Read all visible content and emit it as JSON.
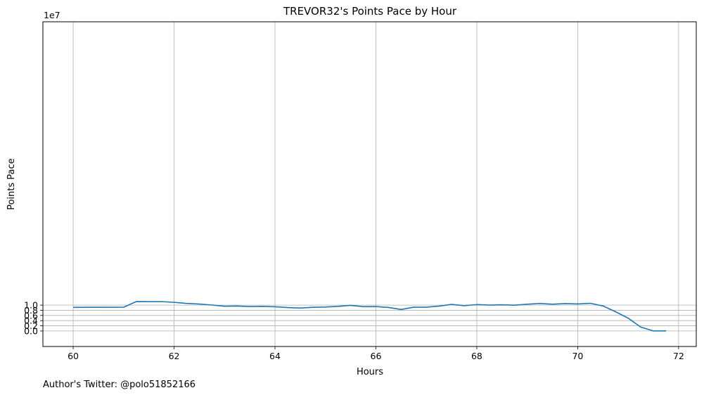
{
  "chart_data": {
    "type": "line",
    "title": "TREVOR32's Points Pace by Hour",
    "xlabel": "Hours",
    "ylabel": "Points Pace",
    "y_exponent_label": "1e7",
    "footer": "Author's Twitter: @polo51852166",
    "xlim": [
      59.4,
      72.35
    ],
    "ylim": [
      -0.6,
      11.95
    ],
    "y_scale_note": "values in units of 1e7",
    "xticks": [
      60,
      62,
      64,
      66,
      68,
      70,
      72
    ],
    "xtick_labels": [
      "60",
      "62",
      "64",
      "66",
      "68",
      "70",
      "72"
    ],
    "yticks": [
      0.0,
      0.2,
      0.4,
      0.6,
      0.8,
      1.0
    ],
    "ytick_labels": [
      "0.0",
      "0.2",
      "0.4",
      "0.6",
      "0.8",
      "1.0"
    ],
    "grid": true,
    "line_color": "#1f77b4",
    "series": [
      {
        "x": [
          60.0,
          60.5,
          61.0,
          61.25,
          61.5,
          61.75,
          62.0,
          62.25,
          62.5,
          62.75,
          63.0,
          63.25,
          63.5,
          63.75,
          64.0,
          64.25,
          64.5,
          64.75,
          65.0,
          65.25,
          65.5,
          65.75,
          66.0,
          66.25,
          66.5,
          66.75,
          67.0,
          67.25,
          67.5,
          67.75,
          68.0,
          68.25,
          68.5,
          68.75,
          69.0,
          69.25,
          69.5,
          69.75,
          70.0,
          70.25,
          70.5,
          70.75,
          71.0,
          71.25,
          71.5,
          71.75
        ],
        "y": [
          0.914,
          0.917,
          0.918,
          1.136,
          1.134,
          1.135,
          1.108,
          1.065,
          1.041,
          1.003,
          0.957,
          0.965,
          0.942,
          0.949,
          0.937,
          0.905,
          0.886,
          0.916,
          0.926,
          0.951,
          0.991,
          0.94,
          0.942,
          0.91,
          0.831,
          0.92,
          0.92,
          0.961,
          1.028,
          0.977,
          1.02,
          1.002,
          1.012,
          0.997,
          1.035,
          1.062,
          1.036,
          1.059,
          1.045,
          1.07,
          0.968,
          0.745,
          0.495,
          0.15,
          0.002,
          0.002
        ]
      }
    ]
  }
}
